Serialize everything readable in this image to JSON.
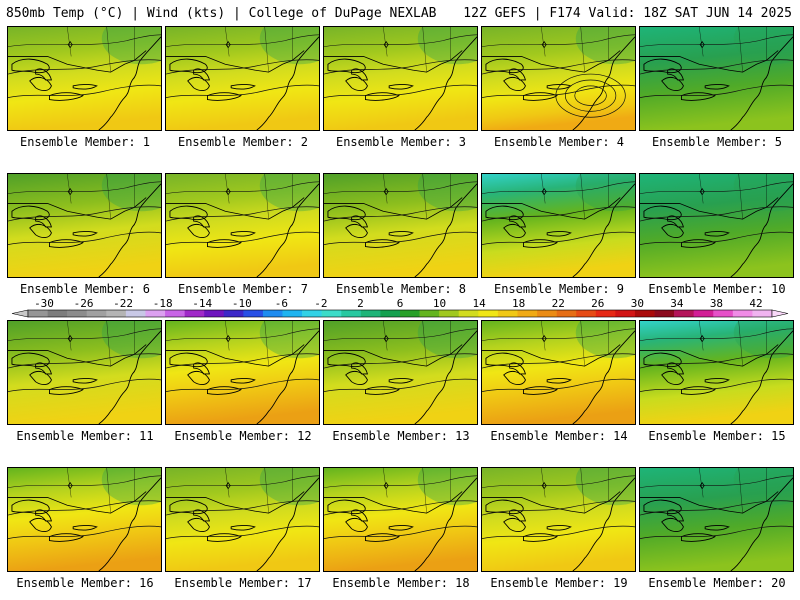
{
  "header": {
    "left": "850mb Temp (°C) | Wind (kts) | College of DuPage NEXLAB",
    "right": "12Z GEFS | F174 Valid: 18Z SAT JUN 14 2025"
  },
  "panel_label_prefix": "Ensemble Member: ",
  "members": [
    {
      "id": "1",
      "theme": "warm"
    },
    {
      "id": "2",
      "theme": "warm"
    },
    {
      "id": "3",
      "theme": "warm"
    },
    {
      "id": "4",
      "theme": "warmlow"
    },
    {
      "id": "5",
      "theme": "cool"
    },
    {
      "id": "6",
      "theme": "mid"
    },
    {
      "id": "7",
      "theme": "warm"
    },
    {
      "id": "8",
      "theme": "mid"
    },
    {
      "id": "9",
      "theme": "cooltop"
    },
    {
      "id": "10",
      "theme": "cool"
    },
    {
      "id": "11",
      "theme": "mid"
    },
    {
      "id": "12",
      "theme": "hot"
    },
    {
      "id": "13",
      "theme": "mid"
    },
    {
      "id": "14",
      "theme": "hot"
    },
    {
      "id": "15",
      "theme": "cooltop"
    },
    {
      "id": "16",
      "theme": "hot"
    },
    {
      "id": "17",
      "theme": "warm"
    },
    {
      "id": "18",
      "theme": "hot"
    },
    {
      "id": "19",
      "theme": "warm"
    },
    {
      "id": "20",
      "theme": "cool"
    }
  ],
  "colorbar": {
    "tick_labels": [
      "-30",
      "-26",
      "-22",
      "-18",
      "-14",
      "-10",
      "-6",
      "-2",
      "2",
      "6",
      "10",
      "14",
      "18",
      "22",
      "26",
      "30",
      "34",
      "38",
      "42"
    ],
    "colors": [
      "#969696",
      "#7d7d7d",
      "#8c8c8c",
      "#a0a0a0",
      "#b4b4b4",
      "#c8c8e6",
      "#dca0f0",
      "#c864e6",
      "#a028c8",
      "#6e14be",
      "#3c28c8",
      "#2850e6",
      "#1e8cf0",
      "#1eb4f0",
      "#32d2e6",
      "#3cdcc8",
      "#28c8a0",
      "#1eb478",
      "#14a050",
      "#28a028",
      "#64b41e",
      "#a0c81e",
      "#d2dc1e",
      "#f0e614",
      "#f0c814",
      "#f0aa14",
      "#eb8c14",
      "#e66e14",
      "#e64b14",
      "#e62814",
      "#d21414",
      "#aa0a0a",
      "#8c0a1e",
      "#b4145a",
      "#d21e96",
      "#e650c8",
      "#f08ce6",
      "#f0b4f0"
    ]
  }
}
